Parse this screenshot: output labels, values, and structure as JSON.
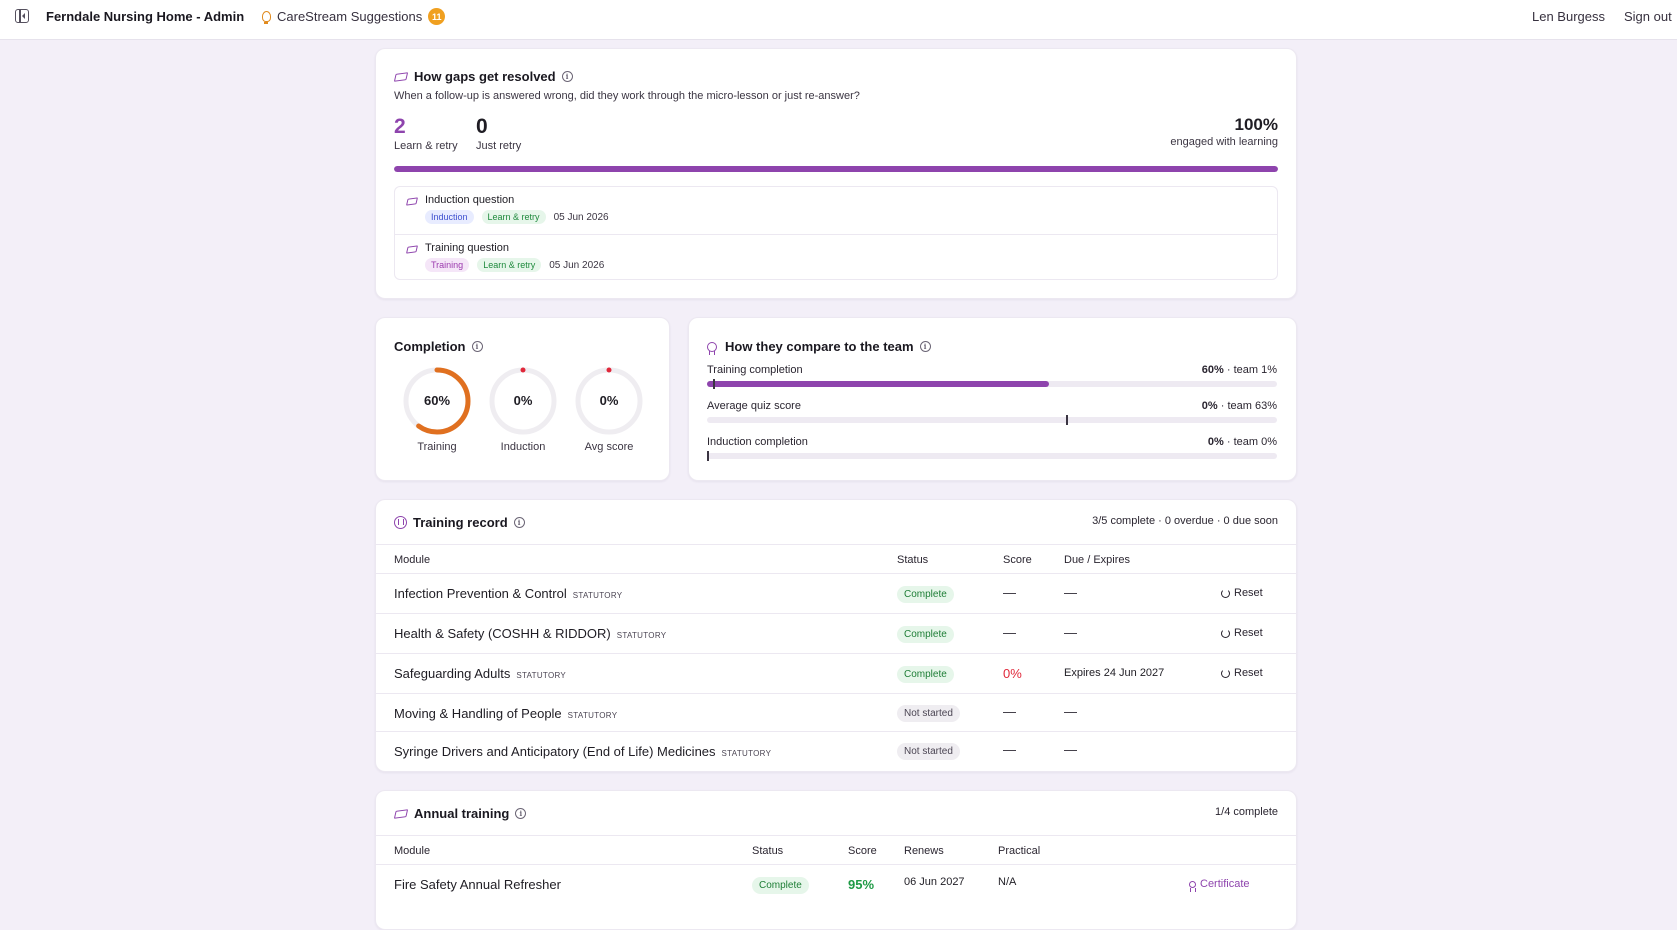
{
  "header": {
    "app_title": "Ferndale Nursing Home - Admin",
    "suggestions_label": "CareStream Suggestions",
    "suggestions_count": "11",
    "user_name": "Len Burgess",
    "sign_out": "Sign out"
  },
  "gaps": {
    "title": "How gaps get resolved",
    "subtitle": "When a follow-up is answered wrong, did they work through the micro-lesson or just re-answer?",
    "learn_retry_count": "2",
    "learn_retry_label": "Learn & retry",
    "just_retry_count": "0",
    "just_retry_label": "Just retry",
    "engaged_pct": "100%",
    "engaged_label": "engaged with learning",
    "engaged_fraction": 1.0,
    "items": [
      {
        "question": "Induction question",
        "category": "Induction",
        "outcome": "Learn & retry",
        "date": "05 Jun 2026"
      },
      {
        "question": "Training question",
        "category": "Training",
        "outcome": "Learn & retry",
        "date": "05 Jun 2026"
      }
    ]
  },
  "completion": {
    "title": "Completion",
    "rings": [
      {
        "value": "60%",
        "label": "Training",
        "fraction": 0.6,
        "color": "#e07020"
      },
      {
        "value": "0%",
        "label": "Induction",
        "fraction": 0,
        "color": "#e0283a"
      },
      {
        "value": "0%",
        "label": "Avg score",
        "fraction": 0,
        "color": "#e0283a"
      }
    ]
  },
  "compare": {
    "title": "How they compare to the team",
    "rows": [
      {
        "label": "Training completion",
        "value": "60%",
        "team": " · team 1%",
        "fraction": 0.6,
        "team_fraction": 0.01
      },
      {
        "label": "Average quiz score",
        "value": "0%",
        "team": " · team 63%",
        "fraction": 0,
        "team_fraction": 0.63
      },
      {
        "label": "Induction completion",
        "value": "0%",
        "team": " · team 0%",
        "fraction": 0,
        "team_fraction": 0
      }
    ]
  },
  "training_record": {
    "title": "Training record",
    "summary": "3/5 complete · 0 overdue · 0 due soon",
    "columns": {
      "module": "Module",
      "status": "Status",
      "score": "Score",
      "due": "Due / Expires"
    },
    "rows": [
      {
        "name": "Infection Prevention & Control",
        "tag": "STATUTORY",
        "status": "Complete",
        "score": "—",
        "due": "—",
        "action": "Reset"
      },
      {
        "name": "Health & Safety (COSHH & RIDDOR)",
        "tag": "STATUTORY",
        "status": "Complete",
        "score": "—",
        "due": "—",
        "action": "Reset"
      },
      {
        "name": "Safeguarding Adults",
        "tag": "STATUTORY",
        "status": "Complete",
        "score": "0%",
        "due": "Expires 24 Jun 2027",
        "action": "Reset"
      },
      {
        "name": "Moving & Handling of People",
        "tag": "STATUTORY",
        "status": "Not started",
        "score": "—",
        "due": "—",
        "action": ""
      },
      {
        "name": "Syringe Drivers and Anticipatory (End of Life) Medicines",
        "tag": "STATUTORY",
        "status": "Not started",
        "score": "—",
        "due": "—",
        "action": ""
      }
    ]
  },
  "annual": {
    "title": "Annual training",
    "summary": "1/4 complete",
    "columns": {
      "module": "Module",
      "status": "Status",
      "score": "Score",
      "renews": "Renews",
      "practical": "Practical"
    },
    "rows": [
      {
        "name": "Fire Safety Annual Refresher",
        "status": "Complete",
        "score": "95%",
        "renews": "06 Jun 2027",
        "practical": "N/A",
        "action": "Certificate"
      }
    ]
  },
  "colors": {
    "accent": "#8e44ad",
    "orange": "#e07020",
    "red": "#e0283a",
    "green": "#1e9a45"
  }
}
